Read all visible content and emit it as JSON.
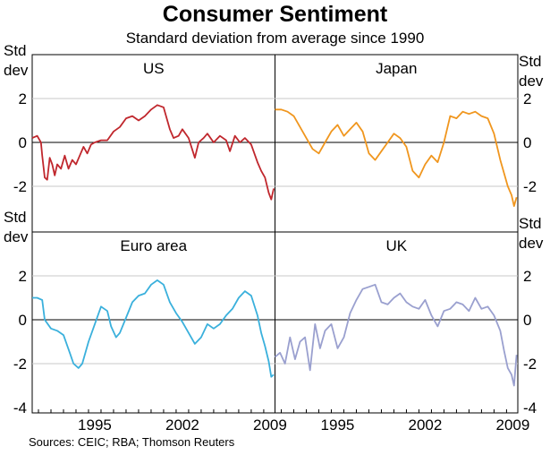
{
  "title": "Consumer Sentiment",
  "subtitle": "Standard deviation from average since 1990",
  "source": "Sources: CEIC; RBA; Thomson Reuters",
  "axis_unit_label": [
    "Std",
    "dev"
  ],
  "chart_data": {
    "type": "line",
    "x_range": [
      1990.0,
      2009.4
    ],
    "x_ticks": [
      "1995",
      "2002",
      "2009"
    ],
    "x_tick_values": [
      1995,
      2002,
      2009
    ],
    "top_row_ylim": [
      -3,
      3
    ],
    "bottom_row_ylim": [
      -4,
      3
    ],
    "y_ticks_top": [
      "2",
      "0",
      "-2"
    ],
    "y_tick_values_top": [
      2,
      0,
      -2
    ],
    "y_ticks_bottom": [
      "2",
      "0",
      "-2",
      "-4"
    ],
    "y_tick_values_bottom": [
      2,
      0,
      -2,
      -4
    ],
    "zero_line": true,
    "panels": [
      {
        "title": "US",
        "color": "#c0272d",
        "x": [
          1990.0,
          1990.4,
          1990.7,
          1990.8,
          1991.0,
          1991.2,
          1991.4,
          1991.6,
          1991.8,
          1992.0,
          1992.3,
          1992.6,
          1992.9,
          1993.2,
          1993.5,
          1993.8,
          1994.1,
          1994.4,
          1994.7,
          1995.0,
          1995.5,
          1996.0,
          1996.5,
          1997.0,
          1997.5,
          1998.0,
          1998.5,
          1999.0,
          1999.5,
          2000.0,
          2000.5,
          2001.0,
          2001.3,
          2001.7,
          2002.0,
          2002.5,
          2003.0,
          2003.3,
          2003.7,
          2004.0,
          2004.5,
          2005.0,
          2005.5,
          2005.8,
          2006.2,
          2006.6,
          2007.0,
          2007.5,
          2008.0,
          2008.3,
          2008.6,
          2008.9,
          2009.1,
          2009.3
        ],
        "y": [
          0.2,
          0.3,
          0.0,
          -0.6,
          -1.6,
          -1.7,
          -0.7,
          -1.0,
          -1.5,
          -1.0,
          -1.2,
          -0.6,
          -1.2,
          -0.8,
          -1.0,
          -0.6,
          -0.2,
          -0.5,
          -0.1,
          0.0,
          0.1,
          0.1,
          0.5,
          0.7,
          1.1,
          1.2,
          1.0,
          1.2,
          1.5,
          1.7,
          1.6,
          0.6,
          0.2,
          0.3,
          0.6,
          0.2,
          -0.7,
          0.0,
          0.2,
          0.4,
          0.0,
          0.3,
          0.1,
          -0.4,
          0.3,
          0.0,
          0.2,
          -0.1,
          -0.9,
          -1.3,
          -1.6,
          -2.3,
          -2.6,
          -2.1
        ]
      },
      {
        "title": "Japan",
        "color": "#f0961e",
        "x": [
          1990.0,
          1990.5,
          1991.0,
          1991.5,
          1992.0,
          1992.5,
          1993.0,
          1993.5,
          1994.0,
          1994.5,
          1995.0,
          1995.5,
          1996.0,
          1996.5,
          1997.0,
          1997.5,
          1998.0,
          1998.5,
          1999.0,
          1999.5,
          2000.0,
          2000.5,
          2001.0,
          2001.5,
          2002.0,
          2002.5,
          2003.0,
          2003.5,
          2004.0,
          2004.5,
          2005.0,
          2005.5,
          2006.0,
          2006.5,
          2007.0,
          2007.5,
          2008.0,
          2008.3,
          2008.6,
          2008.9,
          2009.1,
          2009.3
        ],
        "y": [
          1.5,
          1.5,
          1.4,
          1.2,
          0.7,
          0.2,
          -0.3,
          -0.5,
          0.0,
          0.5,
          0.8,
          0.3,
          0.6,
          0.9,
          0.5,
          -0.5,
          -0.8,
          -0.4,
          0.0,
          0.4,
          0.2,
          -0.2,
          -1.3,
          -1.6,
          -1.0,
          -0.6,
          -0.9,
          0.0,
          1.2,
          1.1,
          1.4,
          1.3,
          1.4,
          1.2,
          1.1,
          0.4,
          -0.8,
          -1.4,
          -2.0,
          -2.4,
          -2.9,
          -2.5
        ]
      },
      {
        "title": "Euro area",
        "color": "#3ab0dc",
        "x": [
          1990.0,
          1990.4,
          1990.8,
          1991.0,
          1991.5,
          1992.0,
          1992.5,
          1993.0,
          1993.3,
          1993.7,
          1994.0,
          1994.5,
          1995.0,
          1995.5,
          1996.0,
          1996.3,
          1996.7,
          1997.0,
          1997.5,
          1998.0,
          1998.5,
          1999.0,
          1999.5,
          2000.0,
          2000.5,
          2001.0,
          2001.5,
          2002.0,
          2002.5,
          2003.0,
          2003.5,
          2004.0,
          2004.5,
          2005.0,
          2005.5,
          2006.0,
          2006.5,
          2007.0,
          2007.5,
          2008.0,
          2008.3,
          2008.6,
          2008.9,
          2009.1,
          2009.3
        ],
        "y": [
          1.0,
          1.0,
          0.9,
          0.0,
          -0.4,
          -0.5,
          -0.7,
          -1.5,
          -2.0,
          -2.2,
          -2.0,
          -1.0,
          -0.2,
          0.6,
          0.4,
          -0.3,
          -0.8,
          -0.6,
          0.1,
          0.8,
          1.1,
          1.2,
          1.6,
          1.8,
          1.6,
          0.8,
          0.3,
          -0.1,
          -0.6,
          -1.1,
          -0.8,
          -0.2,
          -0.4,
          -0.2,
          0.2,
          0.5,
          1.0,
          1.3,
          1.1,
          0.2,
          -0.6,
          -1.2,
          -1.9,
          -2.6,
          -2.5
        ]
      },
      {
        "title": "UK",
        "color": "#9aa0cf",
        "x": [
          1990.0,
          1990.4,
          1990.8,
          1991.2,
          1991.6,
          1992.0,
          1992.4,
          1992.8,
          1993.2,
          1993.6,
          1994.0,
          1994.5,
          1995.0,
          1995.5,
          1996.0,
          1996.5,
          1997.0,
          1997.5,
          1998.0,
          1998.5,
          1999.0,
          1999.5,
          2000.0,
          2000.5,
          2001.0,
          2001.5,
          2002.0,
          2002.5,
          2003.0,
          2003.5,
          2004.0,
          2004.5,
          2005.0,
          2005.5,
          2006.0,
          2006.5,
          2007.0,
          2007.5,
          2008.0,
          2008.3,
          2008.6,
          2008.9,
          2009.1,
          2009.3
        ],
        "y": [
          -1.7,
          -1.5,
          -2.0,
          -0.8,
          -1.8,
          -1.0,
          -0.8,
          -2.3,
          -0.2,
          -1.3,
          -0.5,
          -0.2,
          -1.3,
          -0.8,
          0.3,
          0.9,
          1.4,
          1.5,
          1.6,
          0.8,
          0.7,
          1.0,
          1.2,
          0.8,
          0.6,
          0.5,
          0.9,
          0.2,
          -0.3,
          0.4,
          0.5,
          0.8,
          0.7,
          0.4,
          1.0,
          0.5,
          0.6,
          0.2,
          -0.5,
          -1.4,
          -2.2,
          -2.5,
          -3.0,
          -1.6
        ]
      }
    ]
  }
}
